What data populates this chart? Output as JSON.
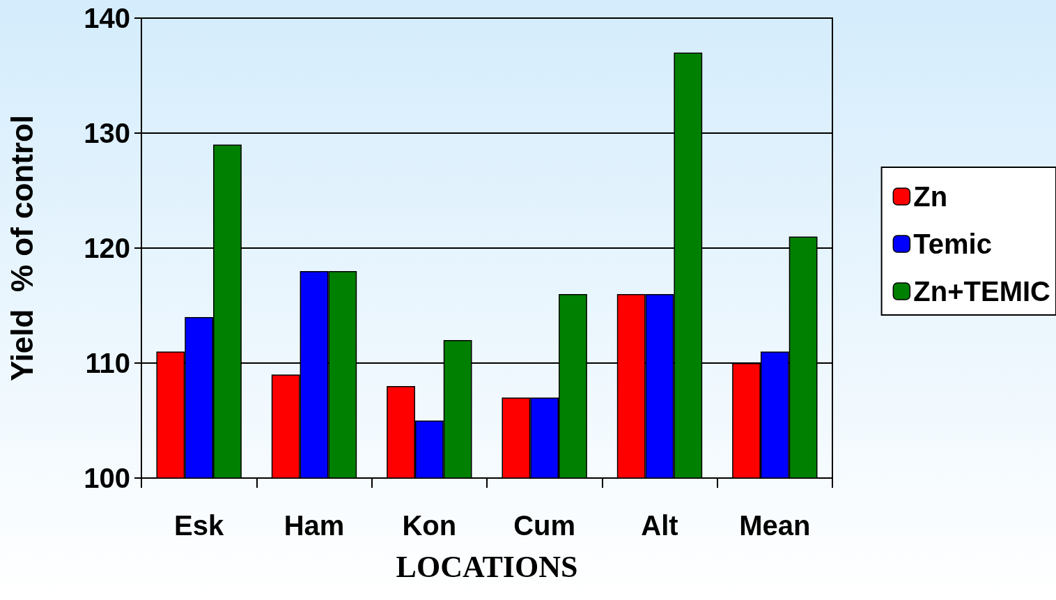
{
  "chart_data": {
    "type": "bar",
    "xlabel": "LOCATIONS",
    "ylabel": "Yield  % of control",
    "categories": [
      "Esk",
      "Ham",
      "Kon",
      "Cum",
      "Alt",
      "Mean"
    ],
    "series": [
      {
        "name": "Zn",
        "color": "#ff0000",
        "values": [
          111,
          109,
          108,
          107,
          116,
          110
        ]
      },
      {
        "name": "Temic",
        "color": "#0000ff",
        "values": [
          114,
          118,
          105,
          107,
          116,
          111
        ]
      },
      {
        "name": "Zn+TEMIC",
        "color": "#008000",
        "values": [
          129,
          118,
          112,
          116,
          137,
          121
        ]
      }
    ],
    "ylim": [
      100,
      140
    ],
    "yticks": [
      100,
      110,
      120,
      130,
      140
    ],
    "grid": "y",
    "legend": "right"
  }
}
